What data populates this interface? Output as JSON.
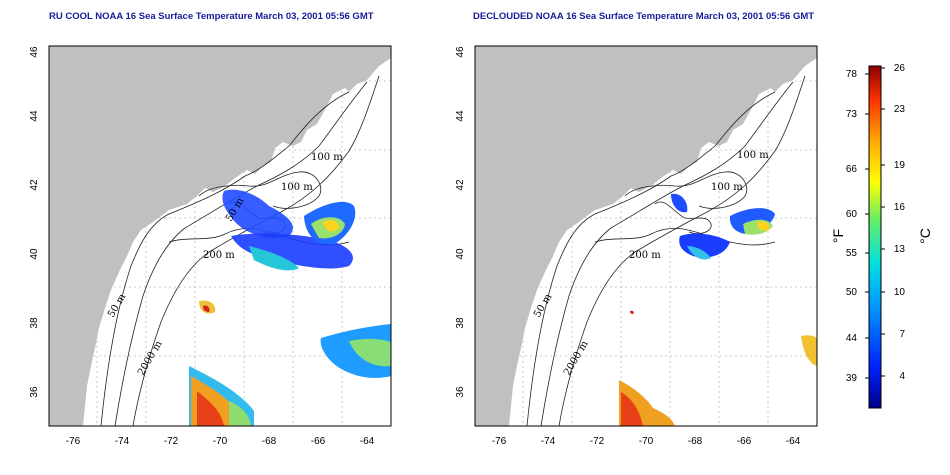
{
  "titles": {
    "left": "RU COOL NOAA 16 Sea Surface Temperature March 03, 2001 05:56 GMT",
    "right": "DECLOUDED NOAA 16 Sea Surface Temperature March 03, 2001 05:56 GMT"
  },
  "axes": {
    "x_ticks": [
      "-76",
      "-74",
      "-72",
      "-70",
      "-68",
      "-66",
      "-64"
    ],
    "y_ticks": [
      "46",
      "44",
      "42",
      "40",
      "38",
      "36"
    ],
    "xlim": [
      -77,
      -63
    ],
    "ylim": [
      35,
      46
    ]
  },
  "contour_labels": {
    "left": [
      "100 m",
      "100 m",
      "50 m",
      "200 m",
      "50 m",
      "2000 m"
    ],
    "right": [
      "100 m",
      "100 m",
      "200 m",
      "50 m",
      "2000 m"
    ]
  },
  "colorbar": {
    "fahrenheit_ticks": [
      "78",
      "73",
      "66",
      "60",
      "55",
      "50",
      "44",
      "39"
    ],
    "celsius_ticks": [
      "26",
      "23",
      "19",
      "16",
      "13",
      "10",
      "7",
      "4"
    ],
    "fahrenheit_unit": "°F",
    "celsius_unit": "°C",
    "range_c": [
      1,
      26
    ]
  },
  "colors": {
    "land": "#c0c0c0",
    "water": "#ffffff",
    "title": "#1a1a9a",
    "grid": "#bbbbbb"
  }
}
